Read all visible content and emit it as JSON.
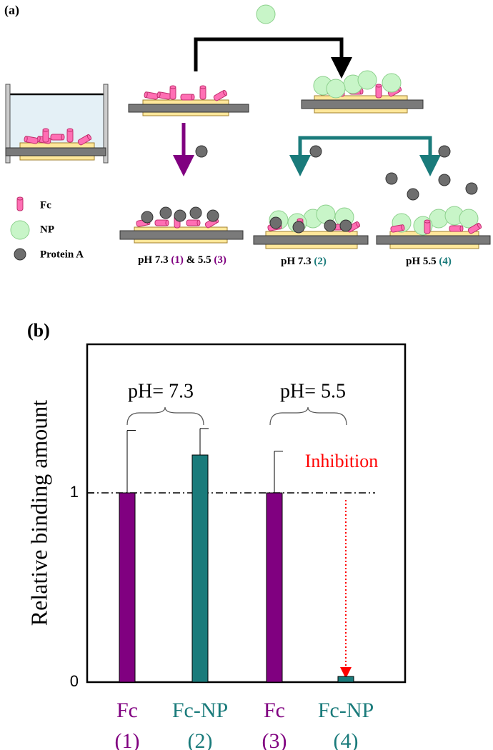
{
  "panel_a": {
    "label": "(a)",
    "legend": [
      "Fc",
      "NP",
      "Protein A"
    ],
    "captions": [
      [
        "pH 7.3 ",
        "(1)",
        " & 5.5 ",
        "(3)"
      ],
      [
        "pH 7.3 ",
        "(2)"
      ],
      [
        "pH 5.5 ",
        "(4)"
      ]
    ]
  },
  "chart_data": {
    "type": "bar",
    "panel_label": "(b)",
    "ylabel": "Relative binding amount",
    "categories": [
      "Fc",
      "Fc-NP",
      "Fc",
      "Fc-NP"
    ],
    "category_numbers": [
      "(1)",
      "(2)",
      "(3)",
      "(4)"
    ],
    "values": [
      1,
      1.2,
      1,
      0.03
    ],
    "errors": [
      0.33,
      0.14,
      0.22,
      null
    ],
    "colors": [
      "#800080",
      "#1a7b7b",
      "#800080",
      "#1a7b7b"
    ],
    "ylim": [
      0,
      1.785
    ],
    "yticks": [
      0,
      1
    ],
    "reference_line": 1,
    "annotations": [
      "pH= 7.3",
      "pH= 5.5",
      "Inhibition"
    ]
  }
}
